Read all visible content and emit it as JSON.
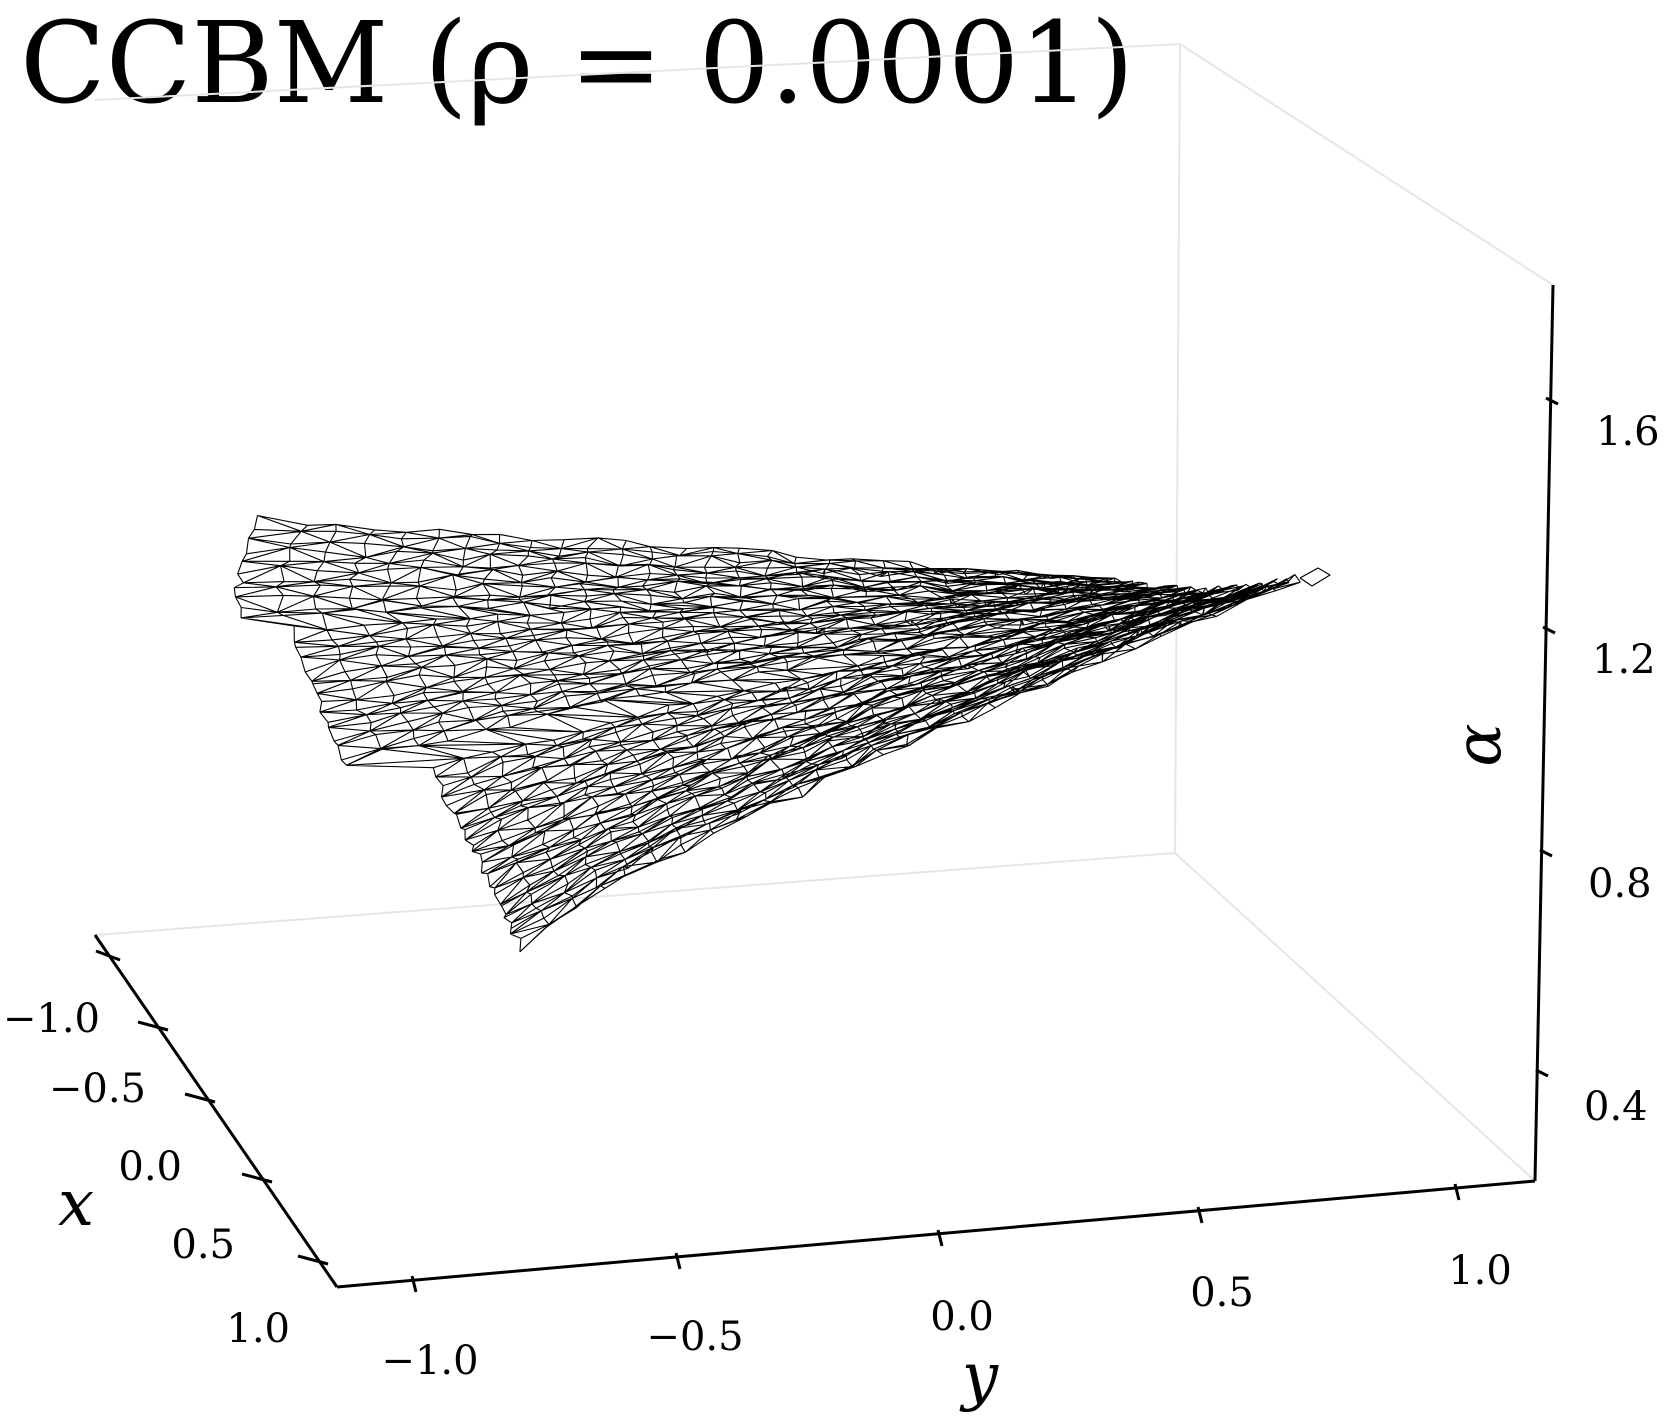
{
  "chart_data": {
    "type": "surface",
    "style": "triangulated wireframe",
    "title": "CCBM (ρ = 0.0001)",
    "axes": {
      "x": {
        "label": "x",
        "ticks": [
          "−1.0",
          "−0.5",
          "0.0",
          "0.5",
          "1.0"
        ],
        "range": [
          -1.2,
          1.2
        ]
      },
      "y": {
        "label": "y",
        "ticks": [
          "−1.0",
          "−0.5",
          "0.0",
          "0.5",
          "1.0"
        ],
        "range": [
          -1.2,
          1.2
        ]
      },
      "z": {
        "label": "α",
        "ticks": [
          "0.4",
          "0.8",
          "1.2",
          "1.6"
        ],
        "range": [
          0.24,
          1.8
        ]
      }
    },
    "grid": false,
    "mesh_color": "#000000",
    "pane_color": "#e6e6e6"
  }
}
